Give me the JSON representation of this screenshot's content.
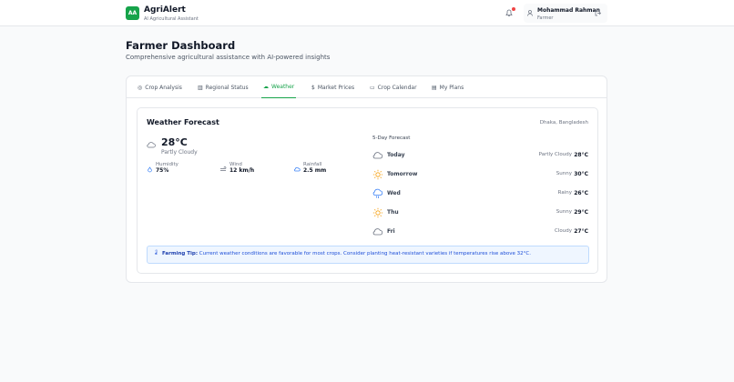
{
  "header": {
    "logo": "AA",
    "app_name": "AgriAlert",
    "tagline": "AI Agricultural Assistant",
    "user_name": "Mohammad Rahman",
    "user_role": "Farmer"
  },
  "page": {
    "title": "Farmer Dashboard",
    "subtitle": "Comprehensive agricultural assistance with AI-powered insights"
  },
  "tabs": [
    {
      "label": "Crop Analysis",
      "icon": "target-icon"
    },
    {
      "label": "Regional Status",
      "icon": "map-icon"
    },
    {
      "label": "Weather",
      "icon": "cloud-icon",
      "active": true
    },
    {
      "label": "Market Prices",
      "icon": "dollar-icon"
    },
    {
      "label": "Crop Calendar",
      "icon": "calendar-icon"
    },
    {
      "label": "My Plans",
      "icon": "file-icon"
    }
  ],
  "weather": {
    "title": "Weather Forecast",
    "location": "Dhaka, Bangladesh",
    "current": {
      "temp": "28°C",
      "condition": "Partly Cloudy"
    },
    "stats": [
      {
        "label": "Humidity",
        "value": "75%"
      },
      {
        "label": "Wind",
        "value": "12 km/h"
      },
      {
        "label": "Rainfall",
        "value": "2.5 mm"
      }
    ],
    "forecast_title": "5-Day Forecast",
    "forecast": [
      {
        "day": "Today",
        "condition": "Partly Cloudy",
        "temp": "28°C",
        "icon": "cloud"
      },
      {
        "day": "Tomorrow",
        "condition": "Sunny",
        "temp": "30°C",
        "icon": "sun"
      },
      {
        "day": "Wed",
        "condition": "Rainy",
        "temp": "26°C",
        "icon": "rain"
      },
      {
        "day": "Thu",
        "condition": "Sunny",
        "temp": "29°C",
        "icon": "sun"
      },
      {
        "day": "Fri",
        "condition": "Cloudy",
        "temp": "27°C",
        "icon": "cloud"
      }
    ],
    "tip_label": "Farming Tip:",
    "tip_text": " Current weather conditions are favorable for most crops. Consider planting heat-resistant varieties if temperatures rise above 32°C."
  },
  "colors": {
    "accent": "#16a34a",
    "tip_bg": "#eff6ff",
    "sun": "#f59e0b",
    "rain": "#3b82f6"
  }
}
